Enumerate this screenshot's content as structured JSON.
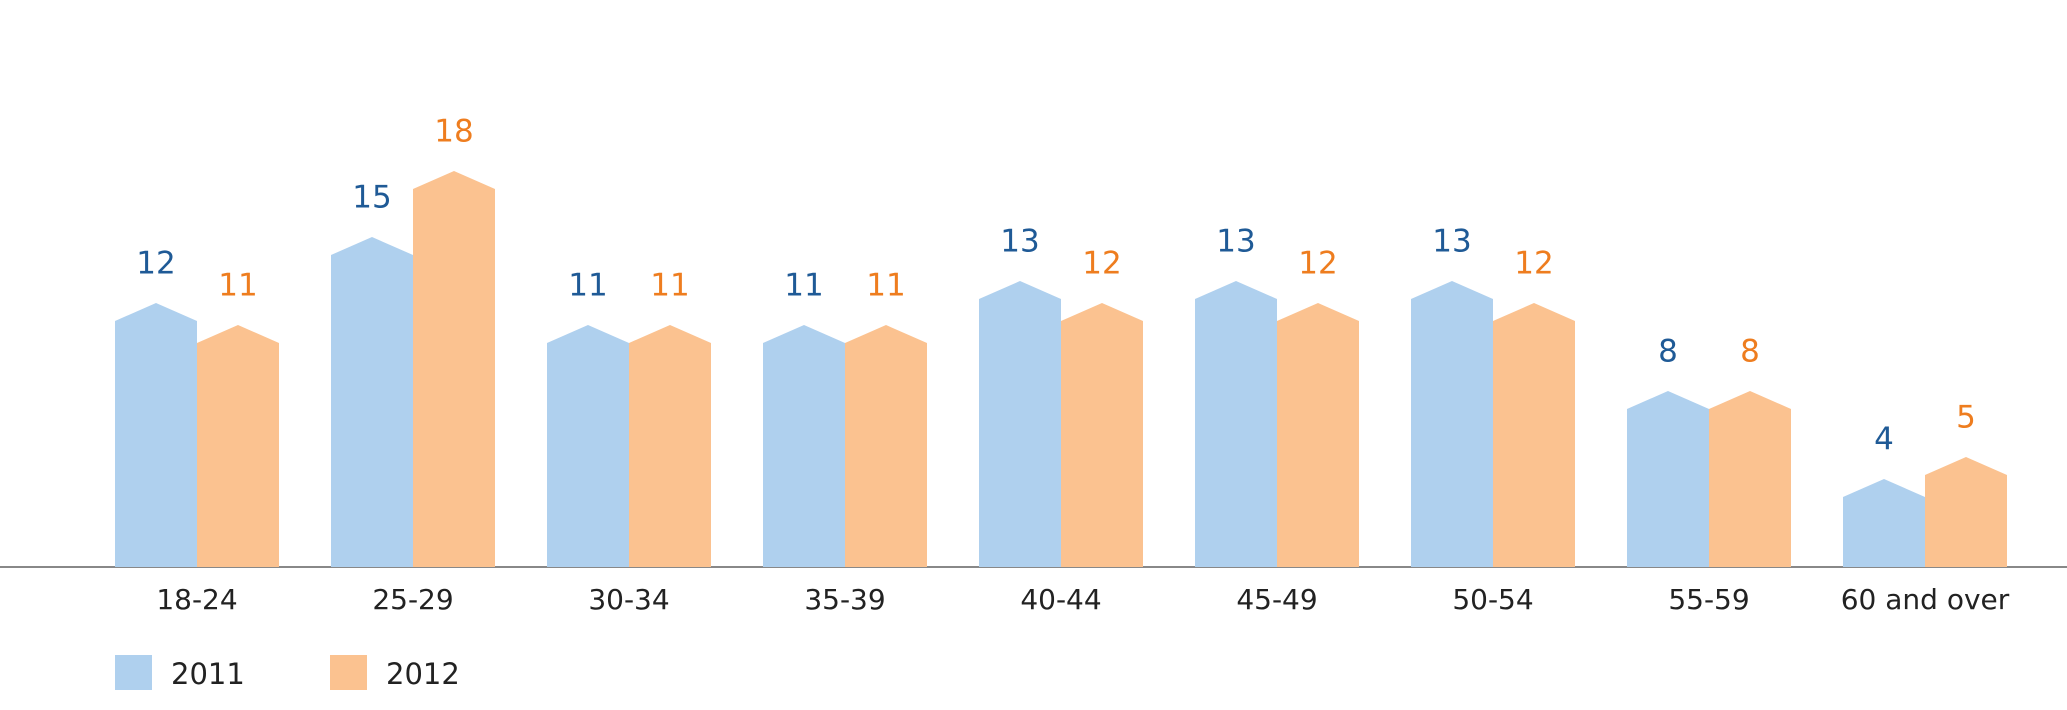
{
  "chart_data": {
    "type": "bar",
    "categories": [
      "18-24",
      "25-29",
      "30-34",
      "35-39",
      "40-44",
      "45-49",
      "50-54",
      "55-59",
      "60 and over"
    ],
    "series": [
      {
        "name": "2011",
        "color": "#afd0ee",
        "label_color": "#1f5a96",
        "values": [
          12,
          15,
          11,
          11,
          13,
          13,
          13,
          8,
          4
        ]
      },
      {
        "name": "2012",
        "color": "#fbc290",
        "label_color": "#ee7d1f",
        "values": [
          11,
          18,
          11,
          11,
          12,
          12,
          12,
          8,
          5
        ]
      }
    ],
    "legend": "bottom-left"
  }
}
